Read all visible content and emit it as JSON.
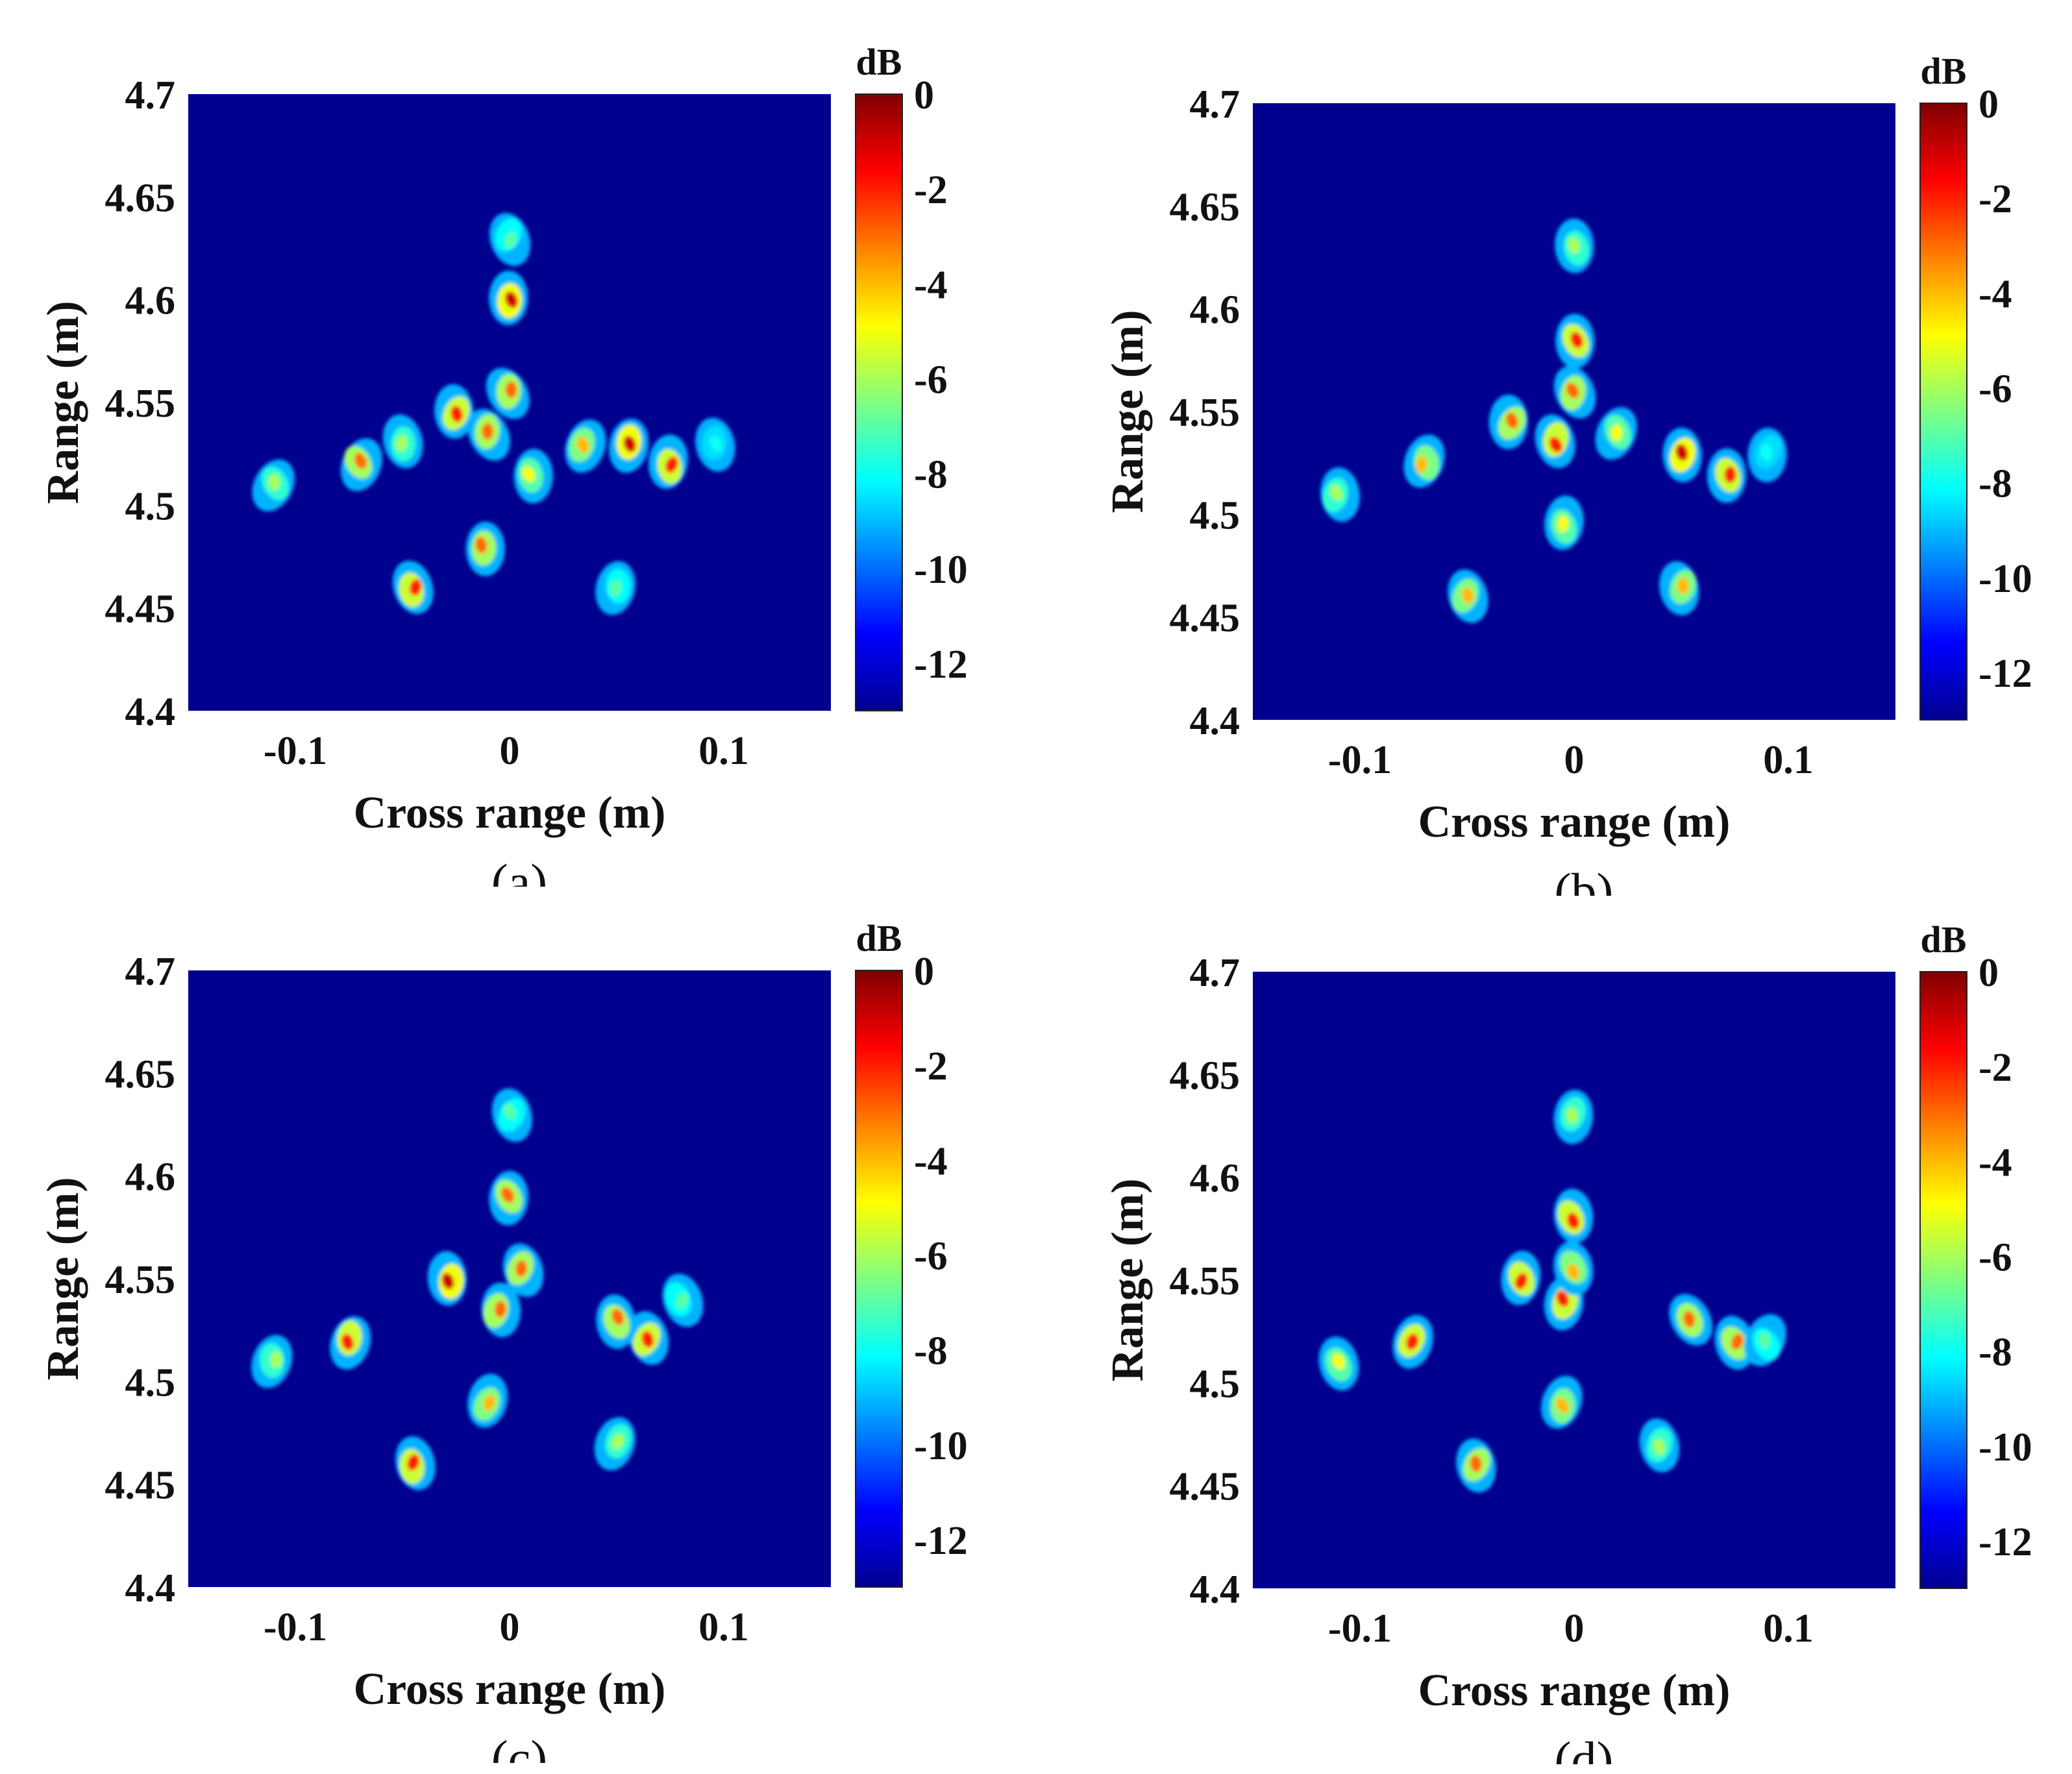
{
  "colors": {
    "background": "#00008f",
    "colormap": [
      "#00008f",
      "#0000ff",
      "#0080ff",
      "#00ffff",
      "#80ff80",
      "#ffff00",
      "#ff8000",
      "#ff0000",
      "#800000"
    ]
  },
  "chart_data": [
    {
      "type": "heatmap",
      "caption": "(a)",
      "xlabel": "Cross range (m)",
      "ylabel": "Range (m)",
      "xlim": [
        -0.15,
        0.15
      ],
      "ylim": [
        4.4,
        4.7
      ],
      "xticks": [
        -0.1,
        0,
        0.1
      ],
      "xtick_labels": [
        "-0.1",
        "0",
        "0.1"
      ],
      "yticks": [
        4.4,
        4.45,
        4.5,
        4.55,
        4.6,
        4.65,
        4.7
      ],
      "ytick_labels": [
        "4.4",
        "4.45",
        "4.5",
        "4.55",
        "4.6",
        "4.65",
        "4.7"
      ],
      "colorbar": {
        "label": "dB",
        "range": [
          -13,
          0
        ],
        "ticks": [
          0,
          -2,
          -4,
          -6,
          -8,
          -10,
          -12
        ],
        "tick_labels": [
          "0",
          "-2",
          "-4",
          "-6",
          "-8",
          "-10",
          "-12"
        ]
      },
      "scatterers": [
        {
          "x": 0.0,
          "y": 4.6,
          "db": -1
        },
        {
          "x": -0.025,
          "y": 4.545,
          "db": -2
        },
        {
          "x": -0.01,
          "y": 4.535,
          "db": -3
        },
        {
          "x": 0.0,
          "y": 4.555,
          "db": -3
        },
        {
          "x": 0.055,
          "y": 4.53,
          "db": -1
        },
        {
          "x": 0.075,
          "y": 4.52,
          "db": -2
        },
        {
          "x": -0.07,
          "y": 4.52,
          "db": -3
        },
        {
          "x": -0.012,
          "y": 4.48,
          "db": -3
        },
        {
          "x": -0.045,
          "y": 4.46,
          "db": -2
        },
        {
          "x": 0.035,
          "y": 4.53,
          "db": -4
        },
        {
          "x": -0.11,
          "y": 4.51,
          "db": -6
        },
        {
          "x": 0.01,
          "y": 4.515,
          "db": -5
        },
        {
          "x": 0.05,
          "y": 4.46,
          "db": -7
        },
        {
          "x": -0.05,
          "y": 4.53,
          "db": -6
        },
        {
          "x": 0.095,
          "y": 4.53,
          "db": -8
        },
        {
          "x": 0.0,
          "y": 4.63,
          "db": -7
        }
      ]
    },
    {
      "type": "heatmap",
      "caption": "(b)",
      "xlabel": "Cross range (m)",
      "ylabel": "Range (m)",
      "xlim": [
        -0.15,
        0.15
      ],
      "ylim": [
        4.4,
        4.7
      ],
      "xticks": [
        -0.1,
        0,
        0.1
      ],
      "xtick_labels": [
        "-0.1",
        "0",
        "0.1"
      ],
      "yticks": [
        4.4,
        4.45,
        4.5,
        4.55,
        4.6,
        4.65,
        4.7
      ],
      "ytick_labels": [
        "4.4",
        "4.45",
        "4.5",
        "4.55",
        "4.6",
        "4.65",
        "4.7"
      ],
      "colorbar": {
        "label": "dB",
        "range": [
          -13,
          0
        ],
        "ticks": [
          0,
          -2,
          -4,
          -6,
          -8,
          -10,
          -12
        ],
        "tick_labels": [
          "0",
          "-2",
          "-4",
          "-6",
          "-8",
          "-10",
          "-12"
        ]
      },
      "scatterers": [
        {
          "x": 0.0,
          "y": 4.585,
          "db": -2
        },
        {
          "x": -0.03,
          "y": 4.545,
          "db": -3
        },
        {
          "x": -0.008,
          "y": 4.535,
          "db": -2
        },
        {
          "x": 0.0,
          "y": 4.56,
          "db": -3
        },
        {
          "x": 0.05,
          "y": 4.53,
          "db": -1
        },
        {
          "x": 0.072,
          "y": 4.52,
          "db": -2
        },
        {
          "x": -0.07,
          "y": 4.525,
          "db": -4
        },
        {
          "x": -0.005,
          "y": 4.495,
          "db": -5
        },
        {
          "x": -0.05,
          "y": 4.46,
          "db": -4
        },
        {
          "x": 0.05,
          "y": 4.465,
          "db": -4
        },
        {
          "x": -0.11,
          "y": 4.51,
          "db": -6
        },
        {
          "x": 0.02,
          "y": 4.54,
          "db": -5
        },
        {
          "x": 0.0,
          "y": 4.63,
          "db": -6
        },
        {
          "x": 0.09,
          "y": 4.53,
          "db": -8
        }
      ]
    },
    {
      "type": "heatmap",
      "caption": "(c)",
      "xlabel": "Cross range (m)",
      "ylabel": "Range (m)",
      "xlim": [
        -0.15,
        0.15
      ],
      "ylim": [
        4.4,
        4.7
      ],
      "xticks": [
        -0.1,
        0,
        0.1
      ],
      "xtick_labels": [
        "-0.1",
        "0",
        "0.1"
      ],
      "yticks": [
        4.4,
        4.45,
        4.5,
        4.55,
        4.6,
        4.65,
        4.7
      ],
      "ytick_labels": [
        "4.4",
        "4.45",
        "4.5",
        "4.55",
        "4.6",
        "4.65",
        "4.7"
      ],
      "colorbar": {
        "label": "dB",
        "range": [
          -13,
          0
        ],
        "ticks": [
          0,
          -2,
          -4,
          -6,
          -8,
          -10,
          -12
        ],
        "tick_labels": [
          "0",
          "-2",
          "-4",
          "-6",
          "-8",
          "-10",
          "-12"
        ]
      },
      "scatterers": [
        {
          "x": -0.028,
          "y": 4.55,
          "db": -1
        },
        {
          "x": 0.0,
          "y": 4.59,
          "db": -3
        },
        {
          "x": -0.005,
          "y": 4.535,
          "db": -3
        },
        {
          "x": 0.005,
          "y": 4.555,
          "db": -3
        },
        {
          "x": 0.065,
          "y": 4.52,
          "db": -2
        },
        {
          "x": 0.05,
          "y": 4.53,
          "db": -3
        },
        {
          "x": -0.075,
          "y": 4.52,
          "db": -2
        },
        {
          "x": -0.01,
          "y": 4.49,
          "db": -4
        },
        {
          "x": -0.045,
          "y": 4.46,
          "db": -2
        },
        {
          "x": 0.05,
          "y": 4.47,
          "db": -6
        },
        {
          "x": -0.11,
          "y": 4.51,
          "db": -6
        },
        {
          "x": 0.0,
          "y": 4.63,
          "db": -7
        },
        {
          "x": 0.08,
          "y": 4.54,
          "db": -7
        }
      ]
    },
    {
      "type": "heatmap",
      "caption": "(d)",
      "xlabel": "Cross range (m)",
      "ylabel": "Range (m)",
      "xlim": [
        -0.15,
        0.15
      ],
      "ylim": [
        4.4,
        4.7
      ],
      "xticks": [
        -0.1,
        0,
        0.1
      ],
      "xtick_labels": [
        "-0.1",
        "0",
        "0.1"
      ],
      "yticks": [
        4.4,
        4.45,
        4.5,
        4.55,
        4.6,
        4.65,
        4.7
      ],
      "ytick_labels": [
        "4.4",
        "4.45",
        "4.5",
        "4.55",
        "4.6",
        "4.65",
        "4.7"
      ],
      "colorbar": {
        "label": "dB",
        "range": [
          -13,
          0
        ],
        "ticks": [
          0,
          -2,
          -4,
          -6,
          -8,
          -10,
          -12
        ],
        "tick_labels": [
          "0",
          "-2",
          "-4",
          "-6",
          "-8",
          "-10",
          "-12"
        ]
      },
      "scatterers": [
        {
          "x": 0.0,
          "y": 4.58,
          "db": -2
        },
        {
          "x": -0.025,
          "y": 4.55,
          "db": -2
        },
        {
          "x": -0.005,
          "y": 4.54,
          "db": -2
        },
        {
          "x": 0.0,
          "y": 4.555,
          "db": -4
        },
        {
          "x": 0.055,
          "y": 4.53,
          "db": -3
        },
        {
          "x": 0.075,
          "y": 4.52,
          "db": -3
        },
        {
          "x": -0.075,
          "y": 4.52,
          "db": -2
        },
        {
          "x": -0.005,
          "y": 4.49,
          "db": -4
        },
        {
          "x": -0.045,
          "y": 4.46,
          "db": -3
        },
        {
          "x": 0.04,
          "y": 4.47,
          "db": -6
        },
        {
          "x": -0.11,
          "y": 4.51,
          "db": -5
        },
        {
          "x": 0.0,
          "y": 4.63,
          "db": -6
        },
        {
          "x": 0.09,
          "y": 4.52,
          "db": -7
        }
      ]
    }
  ]
}
